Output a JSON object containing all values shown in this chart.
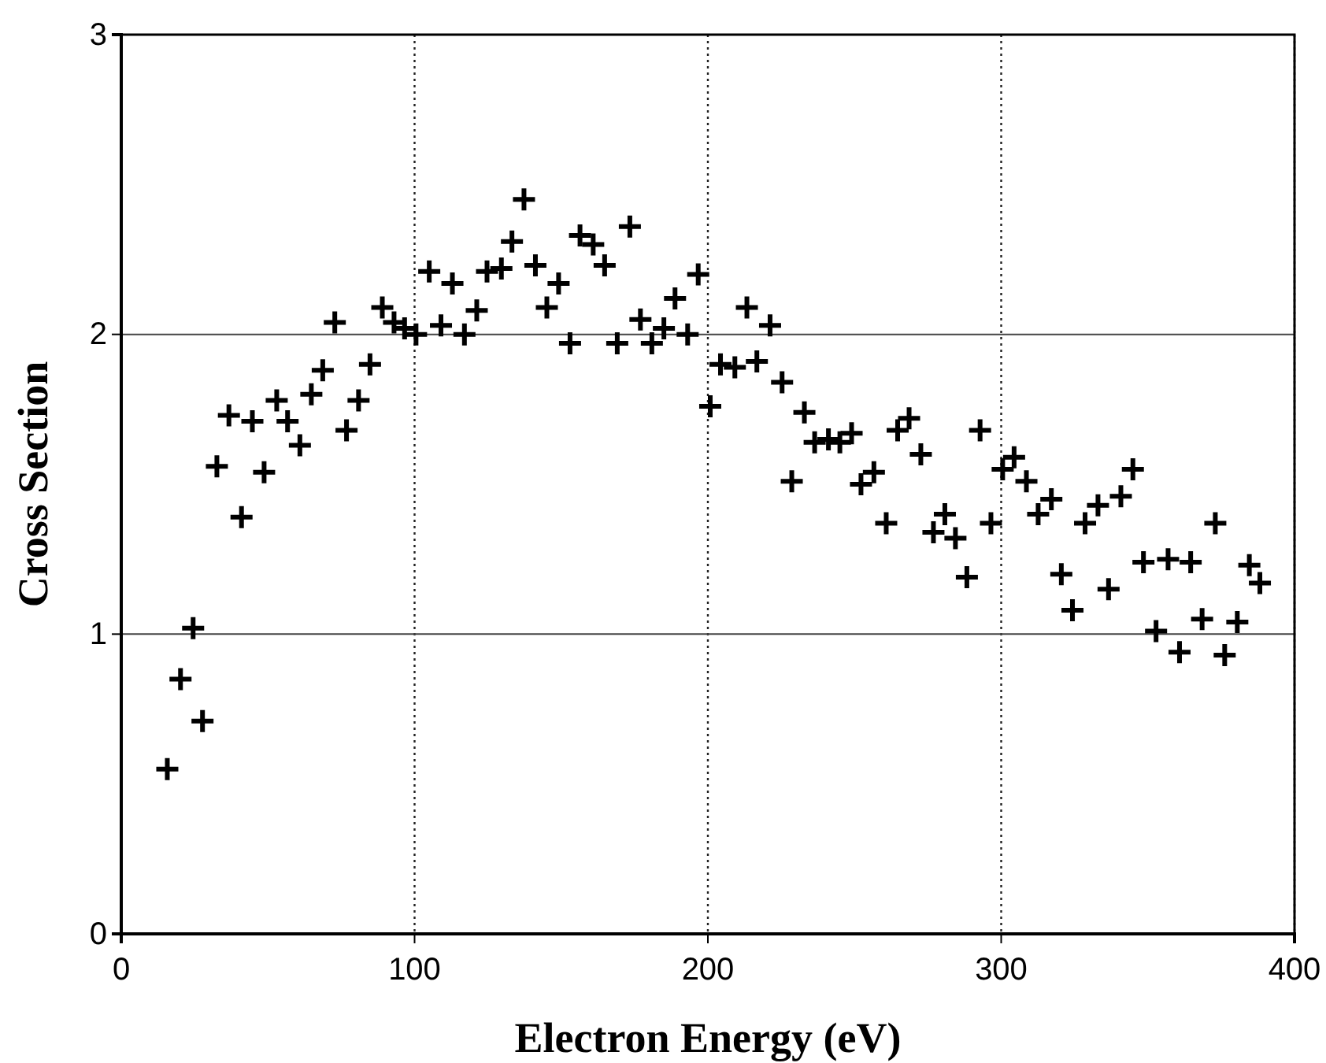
{
  "chart_data": {
    "type": "scatter",
    "xlabel": "Electron Energy (eV)",
    "ylabel": "Cross Section",
    "xlim": [
      0,
      400
    ],
    "xticks": [
      0,
      100,
      200,
      300,
      400
    ],
    "ylim": [
      0,
      3
    ],
    "yticks": [
      0,
      1,
      2,
      3
    ],
    "grid": true,
    "marker": "cross",
    "x": [
      15.7,
      20.2,
      24.5,
      27.7,
      32.6,
      36.7,
      41,
      44.7,
      48.7,
      53,
      56.7,
      60.9,
      64.8,
      68.7,
      72.8,
      76.8,
      80.9,
      84.8,
      89,
      93,
      96.6,
      100.5,
      105,
      109,
      112.9,
      117,
      121.2,
      124.7,
      129.6,
      133.2,
      137.3,
      141.2,
      145.1,
      149.1,
      153,
      156.4,
      160.9,
      164.8,
      169.1,
      173.4,
      177,
      180.9,
      185,
      188.8,
      193.1,
      196.7,
      200.8,
      204.3,
      209.2,
      213.3,
      216.7,
      221.2,
      225.3,
      228.6,
      232.9,
      236.4,
      241.1,
      245,
      249,
      252.2,
      256.6,
      260.8,
      264.7,
      268.6,
      272.6,
      276.9,
      280.8,
      284.4,
      288.3,
      292.8,
      296.5,
      300.5,
      304.4,
      308.6,
      312.6,
      317.1,
      320.5,
      324.3,
      328.6,
      333,
      336.6,
      340.8,
      344.9,
      348.5,
      352.8,
      356.9,
      360.8,
      364.6,
      368.5,
      373,
      376.2,
      380.5,
      384.6,
      388.2
    ],
    "series": [
      {
        "color": "#000000",
        "values": [
          0.55,
          0.85,
          1.02,
          0.71,
          1.56,
          1.73,
          1.39,
          1.71,
          1.54,
          1.78,
          1.71,
          1.63,
          1.8,
          1.88,
          2.04,
          1.68,
          1.78,
          1.9,
          2.09,
          2.04,
          2.02,
          2.0,
          2.21,
          2.03,
          2.17,
          2.0,
          2.08,
          2.21,
          2.22,
          2.31,
          2.45,
          2.23,
          2.09,
          2.17,
          1.97,
          2.33,
          2.3,
          2.23,
          1.97,
          2.36,
          2.05,
          1.97,
          2.02,
          2.12,
          2.0,
          2.2,
          1.76,
          1.9,
          1.89,
          2.09,
          1.91,
          2.03,
          1.84,
          1.51,
          1.74,
          1.64,
          1.65,
          1.64,
          1.67,
          1.5,
          1.54,
          1.37,
          1.68,
          1.72,
          1.6,
          1.34,
          1.4,
          1.32,
          1.19,
          1.68,
          1.37,
          1.55,
          1.59,
          1.51,
          1.4,
          1.45,
          1.2,
          1.08,
          1.37,
          1.43,
          1.15,
          1.46,
          1.55,
          1.24,
          1.01,
          1.25,
          0.94,
          1.24,
          1.05,
          1.37,
          0.93,
          1.04,
          1.23,
          1.17
        ]
      }
    ]
  }
}
